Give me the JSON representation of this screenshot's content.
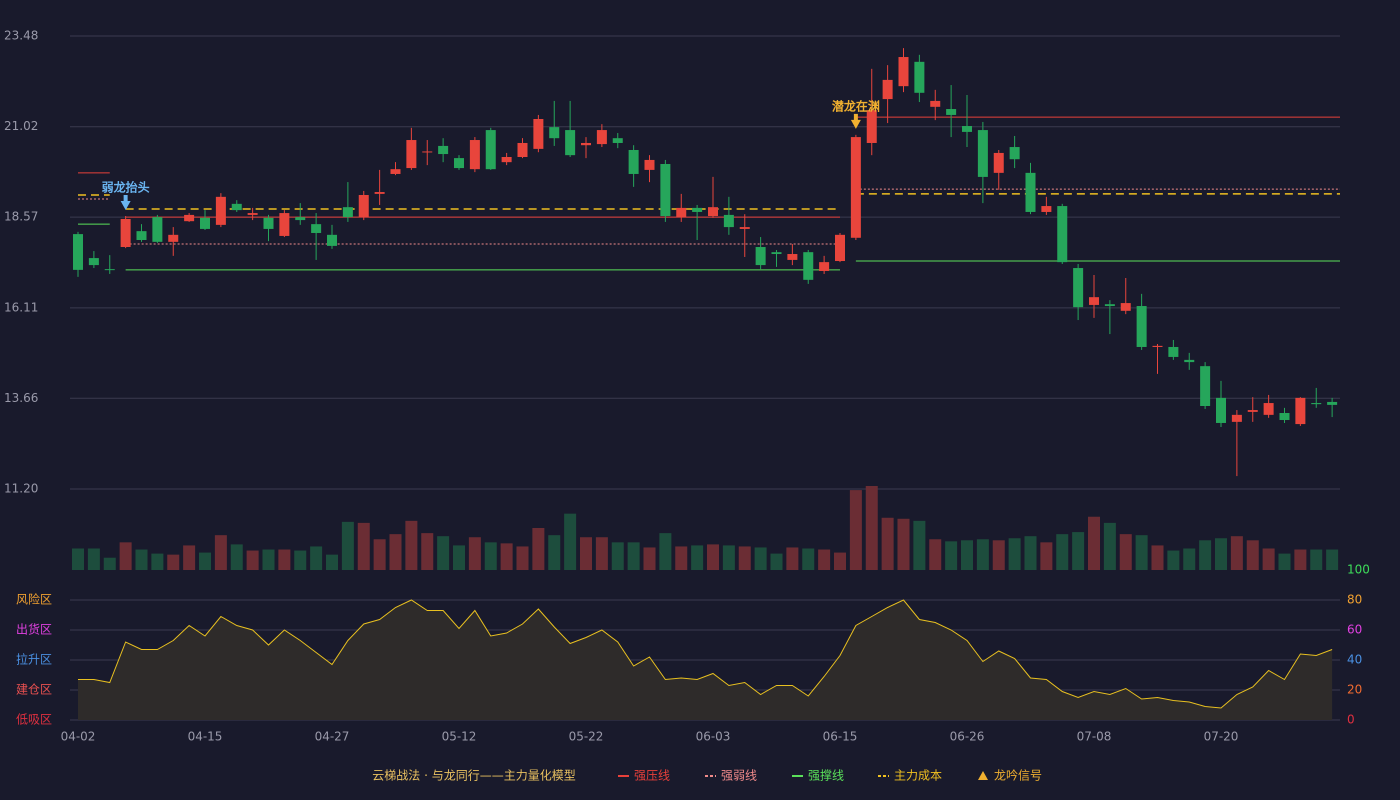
{
  "chart_data": [
    {
      "type": "candlestick",
      "title": "云梯战法 · 与龙同行——主力量化模型",
      "categories": [
        "04-02",
        null,
        null,
        null,
        null,
        null,
        null,
        null,
        "04-15",
        null,
        null,
        null,
        null,
        null,
        null,
        null,
        "04-27",
        null,
        null,
        null,
        null,
        null,
        null,
        null,
        "05-12",
        null,
        null,
        null,
        null,
        null,
        null,
        null,
        "05-22",
        null,
        null,
        null,
        null,
        null,
        null,
        null,
        "06-03",
        null,
        null,
        null,
        null,
        null,
        null,
        null,
        "06-15",
        null,
        null,
        null,
        null,
        null,
        null,
        null,
        "06-26",
        null,
        null,
        null,
        null,
        null,
        null,
        null,
        "07-08",
        null,
        null,
        null,
        null,
        null,
        null,
        null,
        "07-20",
        null,
        null,
        null,
        null,
        null,
        null,
        null
      ],
      "open": [
        18.11,
        17.46,
        17.16,
        17.76,
        18.19,
        18.57,
        17.9,
        18.46,
        18.55,
        18.36,
        18.93,
        18.63,
        18.55,
        18.06,
        18.57,
        18.38,
        18.09,
        18.84,
        18.57,
        19.2,
        19.74,
        19.9,
        20.33,
        20.5,
        20.17,
        19.87,
        20.93,
        20.06,
        20.2,
        20.42,
        21.01,
        20.93,
        20.52,
        20.55,
        20.71,
        20.39,
        19.85,
        20.01,
        18.57,
        18.82,
        18.6,
        18.63,
        18.25,
        17.76,
        17.62,
        17.41,
        17.62,
        17.11,
        17.38,
        18.01,
        20.58,
        21.77,
        22.12,
        22.78,
        21.56,
        21.5,
        21.04,
        20.93,
        19.77,
        20.47,
        19.77,
        18.71,
        18.87,
        17.19,
        16.19,
        16.21,
        16.03,
        16.16,
        15.05,
        15.05,
        14.7,
        14.53,
        13.67,
        13.02,
        13.29,
        13.21,
        13.26,
        12.96,
        13.53,
        13.56
      ],
      "high": [
        18.17,
        17.65,
        17.54,
        18.6,
        18.38,
        18.63,
        18.3,
        18.68,
        18.76,
        19.22,
        19.03,
        18.82,
        18.63,
        18.76,
        18.95,
        18.68,
        18.36,
        19.52,
        19.28,
        19.85,
        20.06,
        20.99,
        20.66,
        20.71,
        20.25,
        20.74,
        20.99,
        20.31,
        20.71,
        21.34,
        21.72,
        21.72,
        20.74,
        21.09,
        20.85,
        20.52,
        20.25,
        20.12,
        19.2,
        18.9,
        19.66,
        19.12,
        18.65,
        18.03,
        17.68,
        17.84,
        17.68,
        17.52,
        18.14,
        20.8,
        22.59,
        22.69,
        23.15,
        22.97,
        22.02,
        22.15,
        21.88,
        21.15,
        20.39,
        20.77,
        20.04,
        19.12,
        18.93,
        17.3,
        17.0,
        16.32,
        16.92,
        16.49,
        15.13,
        15.24,
        14.89,
        14.64,
        14.13,
        13.34,
        13.69,
        13.75,
        13.4,
        13.69,
        13.94,
        13.67
      ],
      "low": [
        16.95,
        17.19,
        17.03,
        17.73,
        17.9,
        17.87,
        17.52,
        18.44,
        18.22,
        18.3,
        18.71,
        18.49,
        17.92,
        18.03,
        18.36,
        17.41,
        17.71,
        18.44,
        18.49,
        18.9,
        19.71,
        19.85,
        19.98,
        20.06,
        19.85,
        19.79,
        19.85,
        19.98,
        20.17,
        20.33,
        20.5,
        20.2,
        20.17,
        20.47,
        20.44,
        19.39,
        19.52,
        18.44,
        18.44,
        17.95,
        18.55,
        18.09,
        17.49,
        17.16,
        17.22,
        17.27,
        16.76,
        17.03,
        17.35,
        17.95,
        20.25,
        21.12,
        21.96,
        21.69,
        21.2,
        20.74,
        20.47,
        18.95,
        19.31,
        19.9,
        18.65,
        18.63,
        17.3,
        15.78,
        15.84,
        15.4,
        15.94,
        14.97,
        14.32,
        14.7,
        14.43,
        13.37,
        12.88,
        11.55,
        13.02,
        13.13,
        12.99,
        12.91,
        13.4,
        13.15
      ],
      "close": [
        17.14,
        17.27,
        17.14,
        18.52,
        17.95,
        17.9,
        18.09,
        18.63,
        18.25,
        19.12,
        18.76,
        18.68,
        18.25,
        18.68,
        18.49,
        18.14,
        17.79,
        18.57,
        19.17,
        19.25,
        19.87,
        20.66,
        20.35,
        20.28,
        19.9,
        20.66,
        19.87,
        20.2,
        20.58,
        21.23,
        20.71,
        20.25,
        20.58,
        20.93,
        20.58,
        19.74,
        20.12,
        18.6,
        18.82,
        18.71,
        18.84,
        18.3,
        18.3,
        17.27,
        17.57,
        17.57,
        16.87,
        17.35,
        18.09,
        20.74,
        21.47,
        22.29,
        22.91,
        21.94,
        21.72,
        21.34,
        20.88,
        19.66,
        20.31,
        20.14,
        18.71,
        18.87,
        17.35,
        16.13,
        16.4,
        16.16,
        16.24,
        15.05,
        15.08,
        14.78,
        14.64,
        13.45,
        12.99,
        13.21,
        13.34,
        13.53,
        13.07,
        13.67,
        13.5,
        13.48
      ],
      "up_color": "#e8453c",
      "down_color": "#26a65b",
      "ylim": [
        11.2,
        23.48
      ],
      "yticks": [
        {
          "value": 11.2,
          "label": "11.20"
        },
        13.66,
        16.11,
        18.57,
        21.02,
        23.48
      ],
      "grid": true,
      "levels": [
        {
          "name": "强压线",
          "color": "#e8403a",
          "dash": "solid",
          "segments": [
            {
              "from": 0,
              "to": 2,
              "value": 19.77
            },
            {
              "from": 3,
              "to": 48,
              "value": 18.57
            },
            {
              "from": 49,
              "to": 79,
              "value": 21.28
            }
          ]
        },
        {
          "name": "强弱线",
          "color": "#f08a8a",
          "dash": "dotted",
          "segments": [
            {
              "from": 0,
              "to": 2,
              "value": 19.06
            },
            {
              "from": 3,
              "to": 48,
              "value": 17.84
            },
            {
              "from": 49,
              "to": 79,
              "value": 19.33
            }
          ]
        },
        {
          "name": "强撑线",
          "color": "#5ae05a",
          "dash": "solid",
          "segments": [
            {
              "from": 0,
              "to": 2,
              "value": 18.38
            },
            {
              "from": 3,
              "to": 48,
              "value": 17.14
            },
            {
              "from": 49,
              "to": 79,
              "value": 17.38
            }
          ]
        },
        {
          "name": "主力成本",
          "color": "#f0c020",
          "dash": "dashed",
          "segments": [
            {
              "from": 0,
              "to": 2,
              "value": 19.17
            },
            {
              "from": 3,
              "to": 48,
              "value": 18.79
            },
            {
              "from": 49,
              "to": 79,
              "value": 19.2
            }
          ]
        }
      ],
      "signal_name": "龙吟信号",
      "signal_color": "#f0b030",
      "signals": [
        {
          "label": "弱龙抬头",
          "index": 3,
          "color": "#6ab4f0"
        },
        {
          "label": "潜龙在渊",
          "index": 49,
          "color": "#f0b030"
        }
      ]
    },
    {
      "type": "volume",
      "values": [
        21,
        21,
        12,
        27,
        20,
        16,
        15,
        24,
        17,
        34,
        25,
        19,
        20,
        20,
        19,
        23,
        15,
        47,
        46,
        30,
        35,
        48,
        36,
        33,
        24,
        32,
        27,
        26,
        23,
        41,
        34,
        55,
        32,
        32,
        27,
        27,
        22,
        36,
        23,
        24,
        25,
        24,
        23,
        22,
        16,
        22,
        21,
        20,
        17,
        78,
        82,
        51,
        50,
        48,
        30,
        28,
        29,
        30,
        29,
        31,
        33,
        27,
        35,
        37,
        52,
        46,
        35,
        34,
        24,
        19,
        21,
        29,
        31,
        33,
        29,
        21,
        16,
        20,
        20,
        20
      ],
      "up_color": "#6b2d34",
      "down_color": "#1d4d3d"
    },
    {
      "type": "line",
      "values": [
        27,
        27,
        25,
        52,
        47,
        47,
        53,
        63,
        56,
        69,
        63,
        60,
        50,
        60,
        53,
        45,
        37,
        53,
        64,
        67,
        75,
        80,
        73,
        73,
        61,
        73,
        56,
        58,
        64,
        74,
        62,
        51,
        55,
        60,
        52,
        36,
        42,
        27,
        28,
        27,
        31,
        23,
        25,
        17,
        23,
        23,
        16,
        29,
        43,
        63,
        69,
        75,
        80,
        67,
        65,
        60,
        53,
        39,
        46,
        41,
        28,
        27,
        19,
        15,
        19,
        17,
        21,
        14,
        15,
        13,
        12,
        9,
        8,
        17,
        22,
        33,
        27,
        44,
        43,
        47
      ],
      "color": "#e8c020",
      "fill": "#2e2b2a",
      "ylim": [
        0,
        100
      ],
      "yticks": [
        0,
        20,
        40,
        60,
        80,
        100
      ],
      "ytick_colors": [
        "#e03040",
        "#f06a30",
        "#4a90e2",
        "#e040e0",
        "#f0a030",
        "#3ddc5a"
      ],
      "zones": [
        {
          "label": "风险区",
          "value": 80,
          "color": "#f0a030"
        },
        {
          "label": "出货区",
          "value": 60,
          "color": "#e040e0"
        },
        {
          "label": "拉升区",
          "value": 40,
          "color": "#4a90e2"
        },
        {
          "label": "建仓区",
          "value": 20,
          "color": "#e85050"
        },
        {
          "label": "低吸区",
          "value": 0,
          "color": "#e03040"
        }
      ]
    }
  ]
}
